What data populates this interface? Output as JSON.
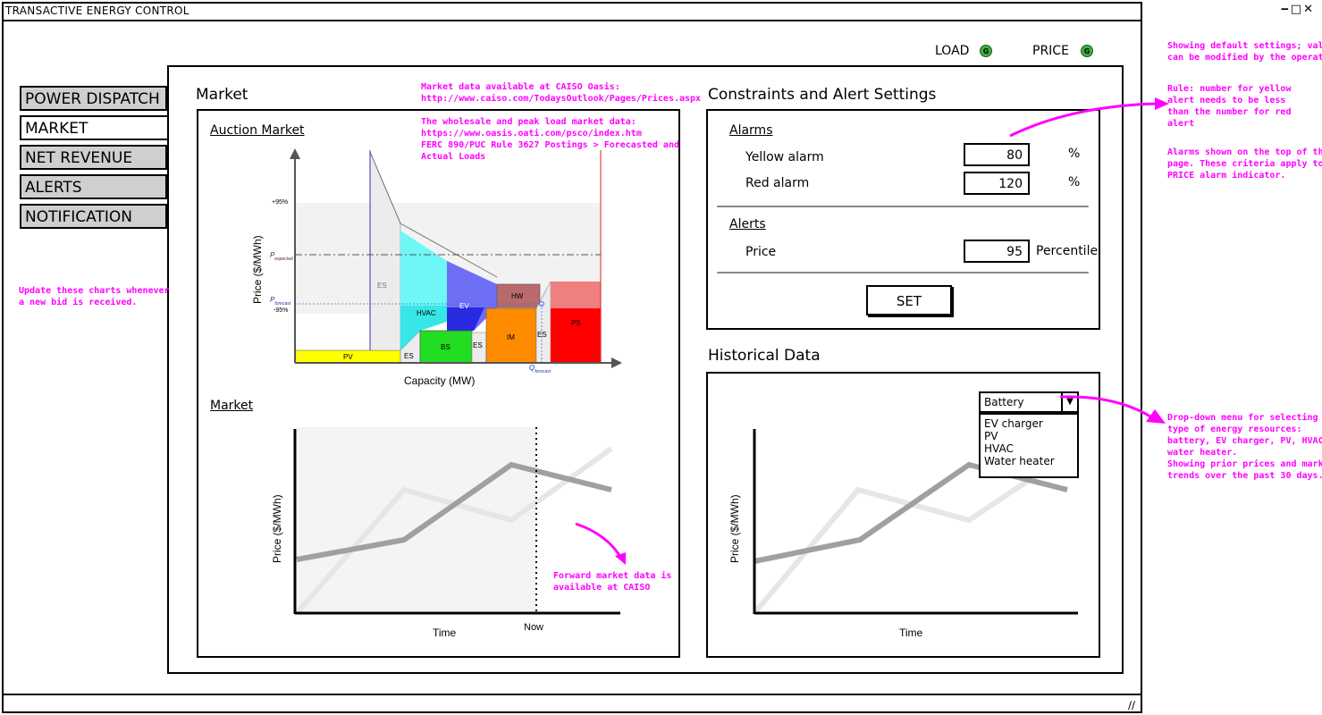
{
  "window": {
    "title": "TRANSACTIVE ENERGY CONTROL",
    "controls": "‒□✕"
  },
  "indicators": {
    "load_label": "LOAD",
    "price_label": "PRICE",
    "load_state": "G",
    "price_state": "G"
  },
  "nav": {
    "items": [
      {
        "label": "POWER DISPATCH"
      },
      {
        "label": "MARKET"
      },
      {
        "label": "NET REVENUE"
      },
      {
        "label": "ALERTS"
      },
      {
        "label": "NOTIFICATION"
      }
    ]
  },
  "market": {
    "title": "Market",
    "auction_title": "Auction Market",
    "auction_ylabel": "Price ($/MWh)",
    "auction_xlabel": "Capacity (MW)",
    "tick_95": "+95%",
    "tick_m95": "-95%",
    "p_expected": "P",
    "p_expected_sub": "expected",
    "p_forecast": "P",
    "p_forecast_sub": "forecast",
    "q_forecast": "Q",
    "q_forecast_sub": "forecast",
    "blocks": {
      "pv": "PV",
      "es1": "ES",
      "es2": "ES",
      "hvac": "HVAC",
      "ev": "EV",
      "bs": "BS",
      "es3": "ES",
      "im": "IM",
      "es4": "ES",
      "hw": "HW",
      "ps": "PS"
    },
    "market_title": "Market",
    "market_ylabel": "Price ($/MWh)",
    "market_xlabel": "Time",
    "now_label": "Now"
  },
  "constraints": {
    "title": "Constraints and Alert Settings",
    "alarms_title": "Alarms",
    "yellow_label": "Yellow alarm",
    "yellow_value": "80",
    "red_label": "Red alarm",
    "red_value": "120",
    "pct": "%",
    "alerts_title": "Alerts",
    "price_label": "Price",
    "price_value": "95",
    "percentile": "Percentile",
    "set_button": "SET"
  },
  "historical": {
    "title": "Historical Data",
    "ylabel": "Price ($/MWh)",
    "xlabel": "Time",
    "dropdown_selected": "Battery",
    "dropdown_options": [
      "EV charger",
      "PV",
      "HVAC",
      "Water heater"
    ]
  },
  "notes": {
    "caiso": "Market data available at CAISO Oasis:\nhttp://www.caiso.com/TodaysOutlook/Pages/Prices.aspx",
    "wholesale": "The wholesale and peak load market data:\nhttps://www.oasis.oati.com/psco/index.htm\nFERC 890/PUC Rule 3627 Postings > Forecasted and\nActual Loads",
    "update": "Update these charts whenever\na new bid is received.",
    "forward": "Forward market data is\navailable at CAISO",
    "defaults": "Showing default settings; values\ncan be modified by the operator.",
    "rule": "Rule: number for yellow\nalert needs to be less\nthan the number for red\nalert",
    "alarms": "Alarms shown on the top of the\npage. These criteria apply to the\nPRICE alarm indicator.",
    "dropdown": "Drop-down menu for selecting a\ntype of energy resources:\nbattery, EV charger, PV, HVAC,\nwater heater.\nShowing prior prices and market\ntrends over the past 30 days."
  },
  "colors": {
    "annotation": "#ff00ff",
    "indicator_green": "#3cb043"
  }
}
